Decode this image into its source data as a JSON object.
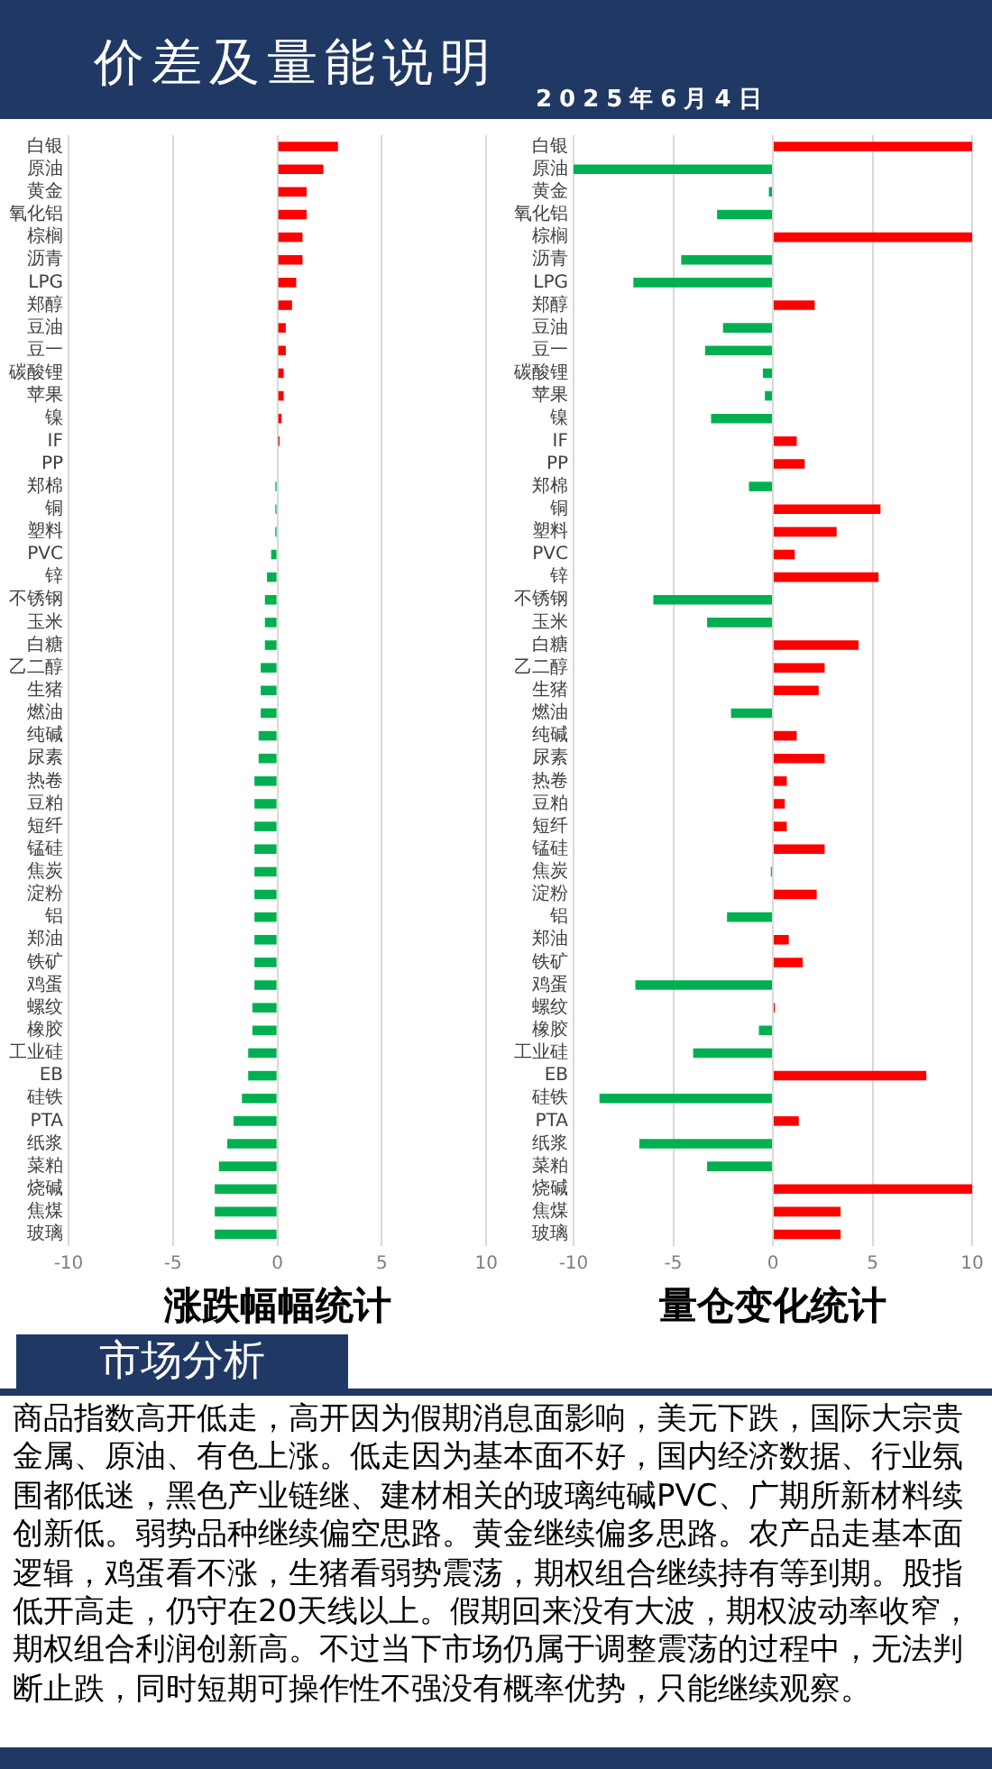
{
  "chart_data": [
    {
      "type": "other",
      "title": "价差及量能说明",
      "subtitle": "2025年6月4日"
    },
    {
      "type": "bar",
      "orientation": "horizontal",
      "xlabel": "涨跌幅幅统计",
      "categories": [
        "白银",
        "原油",
        "黄金",
        "氧化铝",
        "棕榈",
        "沥青",
        "LPG",
        "郑醇",
        "豆油",
        "豆一",
        "碳酸锂",
        "苹果",
        "镍",
        "IF",
        "PP",
        "郑棉",
        "铜",
        "塑料",
        "PVC",
        "锌",
        "不锈钢",
        "玉米",
        "白糖",
        "乙二醇",
        "生猪",
        "燃油",
        "纯碱",
        "尿素",
        "热卷",
        "豆粕",
        "短纤",
        "锰硅",
        "焦炭",
        "淀粉",
        "铝",
        "郑油",
        "铁矿",
        "鸡蛋",
        "螺纹",
        "橡胶",
        "工业硅",
        "EB",
        "硅铁",
        "PTA",
        "纸浆",
        "菜粕",
        "烧碱",
        "焦煤",
        "玻璃"
      ],
      "values": [
        2.9,
        2.2,
        1.4,
        1.4,
        1.2,
        1.2,
        0.9,
        0.7,
        0.4,
        0.4,
        0.3,
        0.3,
        0.2,
        0.1,
        0,
        -0.1,
        -0.1,
        -0.1,
        -0.3,
        -0.5,
        -0.6,
        -0.6,
        -0.6,
        -0.8,
        -0.8,
        -0.8,
        -0.9,
        -0.9,
        -1.1,
        -1.1,
        -1.1,
        -1.1,
        -1.1,
        -1.1,
        -1.1,
        -1.1,
        -1.1,
        -1.1,
        -1.2,
        -1.2,
        -1.4,
        -1.4,
        -1.7,
        -2.1,
        -2.4,
        -2.8,
        -3.0,
        -3.0,
        -3.0
      ],
      "colors": [
        "#ff0000",
        "#ff0000",
        "#ff0000",
        "#ff0000",
        "#ff0000",
        "#ff0000",
        "#ff0000",
        "#ff0000",
        "#ff0000",
        "#ff0000",
        "#ff0000",
        "#ff0000",
        "#ff0000",
        "#ff0000",
        "#ff0000",
        "#00b050",
        "#00b050",
        "#00b050",
        "#00b050",
        "#00b050",
        "#00b050",
        "#00b050",
        "#00b050",
        "#00b050",
        "#00b050",
        "#00b050",
        "#00b050",
        "#00b050",
        "#00b050",
        "#00b050",
        "#00b050",
        "#00b050",
        "#00b050",
        "#00b050",
        "#00b050",
        "#00b050",
        "#00b050",
        "#00b050",
        "#00b050",
        "#00b050",
        "#00b050",
        "#00b050",
        "#00b050",
        "#00b050",
        "#00b050",
        "#00b050",
        "#00b050",
        "#00b050",
        "#00b050"
      ],
      "xlim": [
        -10,
        10
      ],
      "xticks": [
        -10,
        -5,
        0,
        5,
        10
      ],
      "grid": "x"
    },
    {
      "type": "bar",
      "orientation": "horizontal",
      "xlabel": "量仓变化统计",
      "categories": [
        "白银",
        "原油",
        "黄金",
        "氧化铝",
        "棕榈",
        "沥青",
        "LPG",
        "郑醇",
        "豆油",
        "豆一",
        "碳酸锂",
        "苹果",
        "镍",
        "IF",
        "PP",
        "郑棉",
        "铜",
        "塑料",
        "PVC",
        "锌",
        "不锈钢",
        "玉米",
        "白糖",
        "乙二醇",
        "生猪",
        "燃油",
        "纯碱",
        "尿素",
        "热卷",
        "豆粕",
        "短纤",
        "锰硅",
        "焦炭",
        "淀粉",
        "铝",
        "郑油",
        "铁矿",
        "鸡蛋",
        "螺纹",
        "橡胶",
        "工业硅",
        "EB",
        "硅铁",
        "PTA",
        "纸浆",
        "菜粕",
        "烧碱",
        "焦煤",
        "玻璃"
      ],
      "values": [
        10,
        -10,
        -0.2,
        -2.8,
        10,
        -4.6,
        -7.0,
        2.1,
        -2.5,
        -3.4,
        -0.5,
        -0.4,
        -3.1,
        1.2,
        1.6,
        -1.2,
        5.4,
        3.2,
        1.1,
        5.3,
        -6.0,
        -3.3,
        4.3,
        2.6,
        2.3,
        -2.1,
        1.2,
        2.6,
        0.7,
        0.6,
        0.7,
        2.6,
        -0.1,
        2.2,
        -2.3,
        0.8,
        1.5,
        -6.9,
        0.1,
        -0.7,
        -4.0,
        7.7,
        -8.7,
        1.3,
        -6.7,
        -3.3,
        10,
        3.4,
        3.4
      ],
      "colors": [
        "#ff0000",
        "#00b050",
        "#00b050",
        "#00b050",
        "#ff0000",
        "#00b050",
        "#00b050",
        "#ff0000",
        "#00b050",
        "#00b050",
        "#00b050",
        "#00b050",
        "#00b050",
        "#ff0000",
        "#ff0000",
        "#00b050",
        "#ff0000",
        "#ff0000",
        "#ff0000",
        "#ff0000",
        "#00b050",
        "#00b050",
        "#ff0000",
        "#ff0000",
        "#ff0000",
        "#00b050",
        "#ff0000",
        "#ff0000",
        "#ff0000",
        "#ff0000",
        "#ff0000",
        "#ff0000",
        "#00b050",
        "#ff0000",
        "#00b050",
        "#ff0000",
        "#ff0000",
        "#00b050",
        "#ff0000",
        "#00b050",
        "#00b050",
        "#ff0000",
        "#00b050",
        "#ff0000",
        "#00b050",
        "#00b050",
        "#ff0000",
        "#ff0000",
        "#ff0000"
      ],
      "xlim": [
        -10,
        10
      ],
      "xticks": [
        -10,
        -5,
        0,
        5,
        10
      ],
      "grid": "x"
    },
    {
      "type": "other",
      "title": "市场分析",
      "annotations": [
        "商品指数高开低走，高开因为假期消息面影响，美元下跌，国际大宗贵金属、原油、有色上涨。低走因为基本面不好，国内经济数据、行业氛围都低迷，黑色产业链继、建材相关的玻璃纯碱PVC、广期所新材料续创新低。弱势品种继续偏空思路。黄金继续偏多思路。农产品走基本面逻辑，鸡蛋看不涨，生猪看弱势震荡，期权组合继续持有等到期。股指低开高走，仍守在20天线以上。假期回来没有大波，期权波动率收窄，期权组合利润创新高。不过当下市场仍属于调整震荡的过程中，无法判断止跌，同时短期可操作性不强没有概率优势，只能继续观察。"
      ]
    }
  ]
}
